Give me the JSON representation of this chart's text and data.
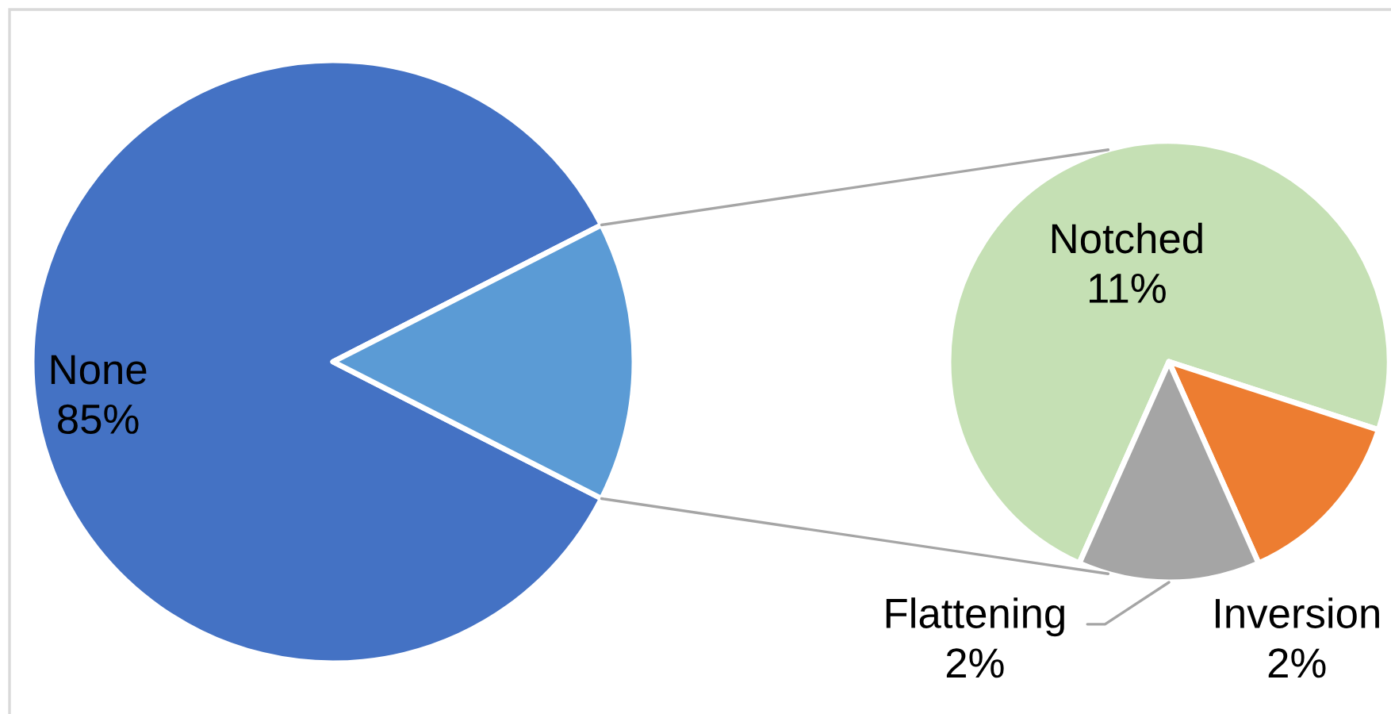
{
  "chart_data": [
    {
      "type": "pie",
      "categories": [
        "None",
        null
      ],
      "values": [
        85,
        15
      ],
      "colors": [
        "#4472c4",
        "#5b9bd5"
      ],
      "value_labels": [
        "85%",
        null
      ]
    },
    {
      "type": "pie",
      "categories": [
        "Notched",
        "Inversion",
        "Flattening"
      ],
      "values": [
        11,
        2,
        2
      ],
      "colors": [
        "#c5e0b4",
        "#ed7d31",
        "#a5a5a5"
      ],
      "value_labels": [
        "11%",
        "2%",
        "2%"
      ]
    }
  ]
}
